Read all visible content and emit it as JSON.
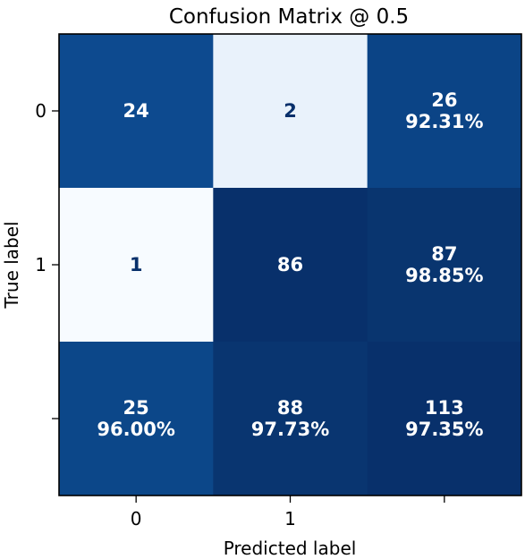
{
  "chart_data": {
    "type": "heatmap",
    "title": "Confusion Matrix @ 0.5",
    "xlabel": "Predicted label",
    "ylabel": "True label",
    "x_tick_labels": [
      "0",
      "1",
      ""
    ],
    "y_tick_labels": [
      "0",
      "1",
      ""
    ],
    "colormap": "Blues",
    "grid": false,
    "cells": [
      [
        {
          "value": 24,
          "lines": [
            "24"
          ],
          "text_color": "#ffffff"
        },
        {
          "value": 2,
          "lines": [
            "2"
          ],
          "text_color": "#08306b"
        },
        {
          "value": 26,
          "lines": [
            "26",
            "92.31%"
          ],
          "text_color": "#ffffff"
        }
      ],
      [
        {
          "value": 1,
          "lines": [
            "1"
          ],
          "text_color": "#08306b"
        },
        {
          "value": 86,
          "lines": [
            "86"
          ],
          "text_color": "#ffffff"
        },
        {
          "value": 87,
          "lines": [
            "87",
            "98.85%"
          ],
          "text_color": "#ffffff"
        }
      ],
      [
        {
          "value": 25,
          "lines": [
            "25",
            "96.00%"
          ],
          "text_color": "#ffffff"
        },
        {
          "value": 88,
          "lines": [
            "88",
            "97.73%"
          ],
          "text_color": "#ffffff"
        },
        {
          "value": 113,
          "lines": [
            "113",
            "97.35%"
          ],
          "text_color": "#ffffff"
        }
      ]
    ],
    "cell_colors": [
      [
        "#0d4a8f",
        "#e9f2fb",
        "#0b4486"
      ],
      [
        "#f7fbff",
        "#08306b",
        "#09356f"
      ],
      [
        "#0c4789",
        "#093570",
        "#08306b"
      ]
    ]
  }
}
